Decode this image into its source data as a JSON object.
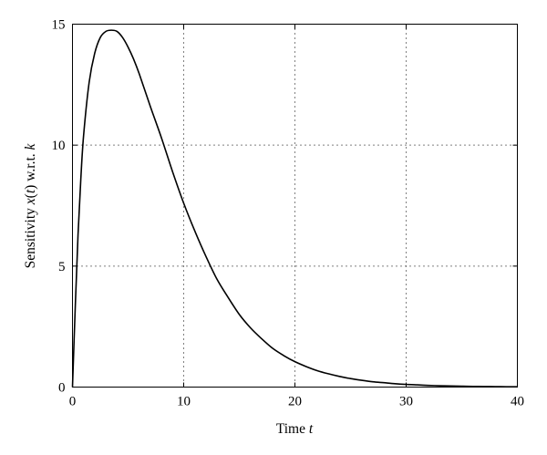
{
  "chart_data": {
    "type": "line",
    "xlabel_prefix": "Time ",
    "xlabel_var": "t",
    "ylabel_prefix": "Sensitivity ",
    "ylabel_var": "x",
    "ylabel_arg_open": "(",
    "ylabel_arg": "t",
    "ylabel_arg_close": ")",
    "ylabel_mid": " w.r.t. ",
    "ylabel_param": "k",
    "xlim": [
      0,
      40
    ],
    "ylim": [
      0,
      15
    ],
    "xticks": [
      0,
      10,
      20,
      30,
      40
    ],
    "yticks": [
      0,
      5,
      10,
      15
    ],
    "xtick_labels": [
      "0",
      "10",
      "20",
      "30",
      "40"
    ],
    "ytick_labels": [
      "0",
      "5",
      "10",
      "15"
    ],
    "grid": true,
    "series": [
      {
        "x": [
          0,
          0.25,
          0.5,
          0.75,
          1,
          1.5,
          2,
          2.5,
          3,
          3.5,
          4,
          4.5,
          5,
          5.5,
          6,
          7,
          8,
          9,
          10,
          11,
          12,
          13,
          14,
          15,
          16,
          17,
          18,
          19,
          20,
          21,
          22,
          23,
          24,
          25,
          26,
          27,
          28,
          29,
          30,
          31,
          32,
          33,
          34,
          35,
          36,
          37,
          38,
          39,
          40
        ],
        "y": [
          0,
          3.3,
          6.3,
          8.6,
          10.4,
          12.6,
          13.8,
          14.45,
          14.7,
          14.75,
          14.7,
          14.45,
          14.05,
          13.55,
          12.95,
          11.6,
          10.3,
          8.9,
          7.6,
          6.45,
          5.4,
          4.45,
          3.7,
          3.0,
          2.45,
          2.0,
          1.6,
          1.3,
          1.05,
          0.85,
          0.68,
          0.55,
          0.44,
          0.35,
          0.28,
          0.22,
          0.18,
          0.14,
          0.11,
          0.09,
          0.07,
          0.055,
          0.045,
          0.035,
          0.028,
          0.022,
          0.018,
          0.014,
          0.011
        ]
      }
    ]
  }
}
